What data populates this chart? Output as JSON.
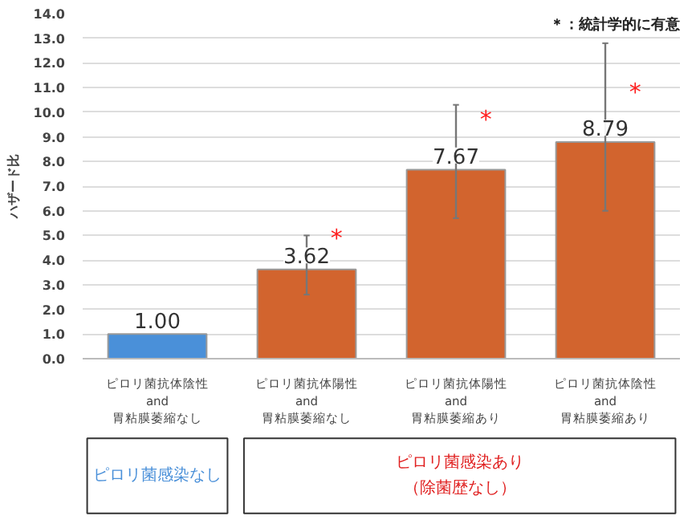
{
  "chart_data": {
    "type": "bar",
    "ylabel": "ハザード比",
    "categories": [
      "ピロリ菌抗体陰性\nand\n胃粘膜萎縮なし",
      "ピロリ菌抗体陽性\nand\n胃粘膜萎縮なし",
      "ピロリ菌抗体陽性\nand\n胃粘膜萎縮あり",
      "ピロリ菌抗体陰性\nand\n胃粘膜萎縮あり"
    ],
    "values": [
      1.0,
      3.62,
      7.67,
      8.79
    ],
    "colors": [
      "#4a90d9",
      "#d2642e",
      "#d2642e",
      "#d2642e"
    ],
    "errors": [
      null,
      [
        2.6,
        5.0
      ],
      [
        5.7,
        10.3
      ],
      [
        6.0,
        12.8
      ]
    ],
    "value_labels": [
      "1.00",
      "3.62",
      "7.67",
      "8.79"
    ],
    "ylim": [
      0,
      14
    ],
    "yticks": [
      {
        "value": 0,
        "label": "0.0"
      },
      {
        "value": 1,
        "label": "1.0"
      },
      {
        "value": 2,
        "label": "2.0"
      },
      {
        "value": 3,
        "label": "3.0"
      },
      {
        "value": 4,
        "label": "4.0"
      },
      {
        "value": 5,
        "label": "5.0"
      },
      {
        "value": 6,
        "label": "6.0"
      },
      {
        "value": 7,
        "label": "7.0"
      },
      {
        "value": 8,
        "label": "8.0"
      },
      {
        "value": 9,
        "label": "9.0"
      },
      {
        "value": 10,
        "label": "10.0"
      },
      {
        "value": 11,
        "label": "11.0"
      },
      {
        "value": 12,
        "label": "12.0"
      },
      {
        "value": 13,
        "label": "13.0"
      },
      {
        "value": 14,
        "label": "14.0"
      }
    ],
    "grid": "y",
    "annotations": [
      {
        "text": "*",
        "x": "ピロリ菌抗体陽性\nand\n胃粘膜萎縮なし",
        "y": 4.9
      },
      {
        "text": "*",
        "x": "ピロリ菌抗体陽性\nand\n胃粘膜萎縮あり",
        "y": 9.7
      },
      {
        "text": "*",
        "x": "ピロリ菌抗体陰性\nand\n胃粘膜萎縮あり",
        "y": 10.8
      },
      "＊：統計学的に有意",
      "ピロリ菌感染なし",
      "ピロリ菌感染あり",
      "（除菌歴なし）"
    ]
  }
}
